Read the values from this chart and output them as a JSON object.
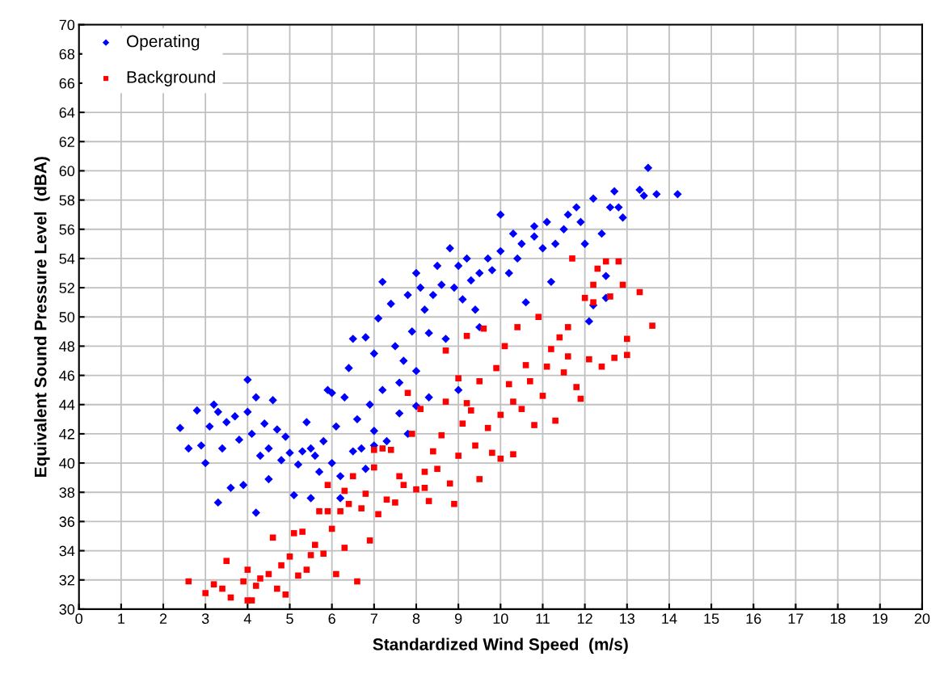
{
  "chart_data": {
    "type": "scatter",
    "xlabel": "Standardized Wind Speed  (m/s)",
    "ylabel": "Equivalent Sound Pressure Level  (dBA)",
    "xlim": [
      0,
      20
    ],
    "ylim": [
      30,
      70
    ],
    "xticks": [
      0,
      1,
      2,
      3,
      4,
      5,
      6,
      7,
      8,
      9,
      10,
      11,
      12,
      13,
      14,
      15,
      16,
      17,
      18,
      19,
      20
    ],
    "yticks": [
      30,
      32,
      34,
      36,
      38,
      40,
      42,
      44,
      46,
      48,
      50,
      52,
      54,
      56,
      58,
      60,
      62,
      64,
      66,
      68,
      70
    ],
    "grid": true,
    "legend": "top left",
    "series": [
      {
        "name": "Operating",
        "color": "#0000ff",
        "marker": "diamond",
        "x": [
          2.4,
          2.6,
          2.8,
          2.9,
          3.0,
          3.1,
          3.2,
          3.3,
          3.3,
          3.4,
          3.5,
          3.6,
          3.7,
          3.8,
          3.9,
          4.0,
          4.0,
          4.1,
          4.2,
          4.2,
          4.3,
          4.4,
          4.5,
          4.5,
          4.6,
          4.7,
          4.8,
          4.9,
          5.0,
          5.1,
          5.2,
          5.3,
          5.4,
          5.5,
          5.6,
          5.7,
          5.8,
          5.9,
          6.0,
          6.1,
          6.2,
          6.2,
          6.3,
          6.4,
          6.5,
          6.5,
          6.6,
          6.7,
          6.8,
          6.9,
          7.0,
          7.0,
          7.1,
          7.2,
          7.2,
          7.3,
          7.4,
          7.5,
          7.6,
          7.7,
          7.8,
          7.8,
          7.9,
          8.0,
          8.0,
          8.1,
          8.2,
          8.3,
          8.4,
          8.5,
          8.6,
          8.7,
          8.8,
          8.9,
          9.0,
          9.1,
          9.2,
          9.3,
          9.4,
          9.5,
          9.5,
          9.7,
          9.8,
          10.0,
          10.0,
          10.2,
          10.3,
          10.4,
          10.5,
          10.6,
          10.8,
          10.8,
          11.0,
          11.1,
          11.2,
          11.3,
          11.5,
          11.6,
          11.8,
          11.9,
          12.0,
          12.1,
          12.2,
          12.2,
          12.4,
          12.5,
          12.6,
          12.7,
          12.8,
          12.9,
          13.3,
          13.4,
          13.5,
          13.7,
          14.2,
          12.5,
          9.0,
          8.3,
          7.0,
          6.8,
          5.5,
          6.0,
          7.6,
          8.0
        ],
        "values": [
          42.4,
          41,
          43.6,
          41.2,
          40,
          42.5,
          44,
          43.5,
          37.3,
          41,
          42.8,
          38.3,
          43.2,
          41.6,
          38.5,
          45.7,
          43.5,
          42,
          36.6,
          44.5,
          40.5,
          42.7,
          41,
          38.9,
          44.3,
          42.3,
          40.2,
          41.8,
          40.7,
          37.8,
          39.9,
          40.8,
          42.8,
          37.6,
          40.5,
          39.4,
          41.5,
          45,
          40,
          42.5,
          39.1,
          37.6,
          44.5,
          46.5,
          40.8,
          48.5,
          43,
          41,
          48.6,
          44,
          47.5,
          41.2,
          49.9,
          52.4,
          45,
          41.5,
          50.9,
          48,
          43.4,
          47,
          51.5,
          42,
          49,
          46.3,
          53,
          52,
          50.5,
          44.5,
          51.5,
          53.5,
          52.2,
          48.5,
          54.7,
          52,
          53.5,
          51.2,
          54,
          52.5,
          50.5,
          53,
          49.3,
          54,
          53.2,
          57,
          54.5,
          53,
          55.7,
          54,
          55,
          51,
          55.5,
          56.2,
          54.7,
          56.5,
          52.4,
          55,
          56,
          57,
          57.5,
          56.5,
          55,
          49.7,
          58.1,
          50.8,
          55.7,
          51.3,
          57.5,
          58.6,
          57.5,
          56.8,
          58.7,
          58.3,
          60.2,
          58.4,
          58.4,
          52.8,
          45,
          48.9,
          42.2,
          39.6,
          41,
          44.8,
          45.5,
          43.9
        ]
      },
      {
        "name": "Background",
        "color": "#ff0000",
        "marker": "square",
        "x": [
          2.6,
          3.0,
          3.2,
          3.4,
          3.5,
          3.6,
          3.9,
          4.0,
          4.0,
          4.1,
          4.2,
          4.3,
          4.5,
          4.6,
          4.7,
          4.8,
          4.9,
          5.0,
          5.1,
          5.2,
          5.3,
          5.4,
          5.5,
          5.6,
          5.7,
          5.8,
          5.9,
          6.0,
          6.1,
          6.2,
          6.3,
          6.4,
          6.5,
          6.6,
          6.7,
          6.8,
          6.9,
          7.0,
          7.1,
          7.2,
          7.3,
          7.4,
          7.5,
          7.6,
          7.7,
          7.8,
          7.9,
          8.0,
          8.1,
          8.2,
          8.3,
          8.4,
          8.5,
          8.6,
          8.7,
          8.8,
          8.9,
          9.0,
          9.0,
          9.1,
          9.2,
          9.3,
          9.4,
          9.5,
          9.5,
          9.6,
          9.7,
          9.8,
          9.9,
          10.0,
          10.0,
          10.1,
          10.2,
          10.3,
          10.4,
          10.5,
          10.6,
          10.7,
          10.8,
          10.9,
          11.0,
          11.1,
          11.2,
          11.3,
          11.4,
          11.5,
          11.6,
          11.7,
          11.8,
          11.9,
          12.0,
          12.1,
          12.2,
          12.3,
          12.4,
          12.5,
          12.6,
          12.7,
          12.8,
          12.9,
          13.0,
          13.3,
          13.6,
          13.0,
          12.2,
          11.6,
          10.3,
          9.2,
          8.7,
          7.0,
          6.3,
          5.9,
          8.2
        ],
        "values": [
          31.9,
          31.1,
          31.7,
          31.4,
          33.3,
          30.8,
          31.9,
          30.6,
          32.7,
          30.6,
          31.6,
          32.1,
          32.4,
          34.9,
          31.4,
          33,
          31.0,
          33.6,
          35.2,
          32.3,
          35.3,
          32.7,
          33.7,
          34.4,
          36.7,
          33.8,
          38.5,
          35.5,
          32.4,
          36.7,
          34.2,
          37.2,
          39.1,
          31.9,
          36.9,
          37.9,
          34.7,
          39.7,
          36.5,
          41,
          37.5,
          40.9,
          37.3,
          39.1,
          38.5,
          44.8,
          42,
          38.2,
          43.7,
          39.4,
          37.4,
          40.8,
          39.6,
          41.9,
          44.2,
          38.6,
          37.2,
          45.8,
          40.5,
          42.7,
          48.7,
          43.6,
          41.2,
          38.9,
          45.6,
          49.2,
          42.4,
          40.7,
          46.5,
          40.3,
          43.3,
          48,
          45.4,
          44.2,
          49.3,
          43.7,
          46.7,
          45.6,
          42.6,
          50,
          44.6,
          46.6,
          47.8,
          42.9,
          48.6,
          46.2,
          47.3,
          54,
          45.2,
          44.4,
          51.3,
          47.1,
          52.2,
          53.3,
          46.6,
          53.8,
          51.4,
          47.2,
          53.8,
          52.2,
          48.5,
          51.7,
          49.4,
          47.4,
          51,
          49.3,
          40.6,
          44.1,
          47.7,
          40.9,
          38.1,
          36.7,
          38.3
        ]
      }
    ]
  }
}
